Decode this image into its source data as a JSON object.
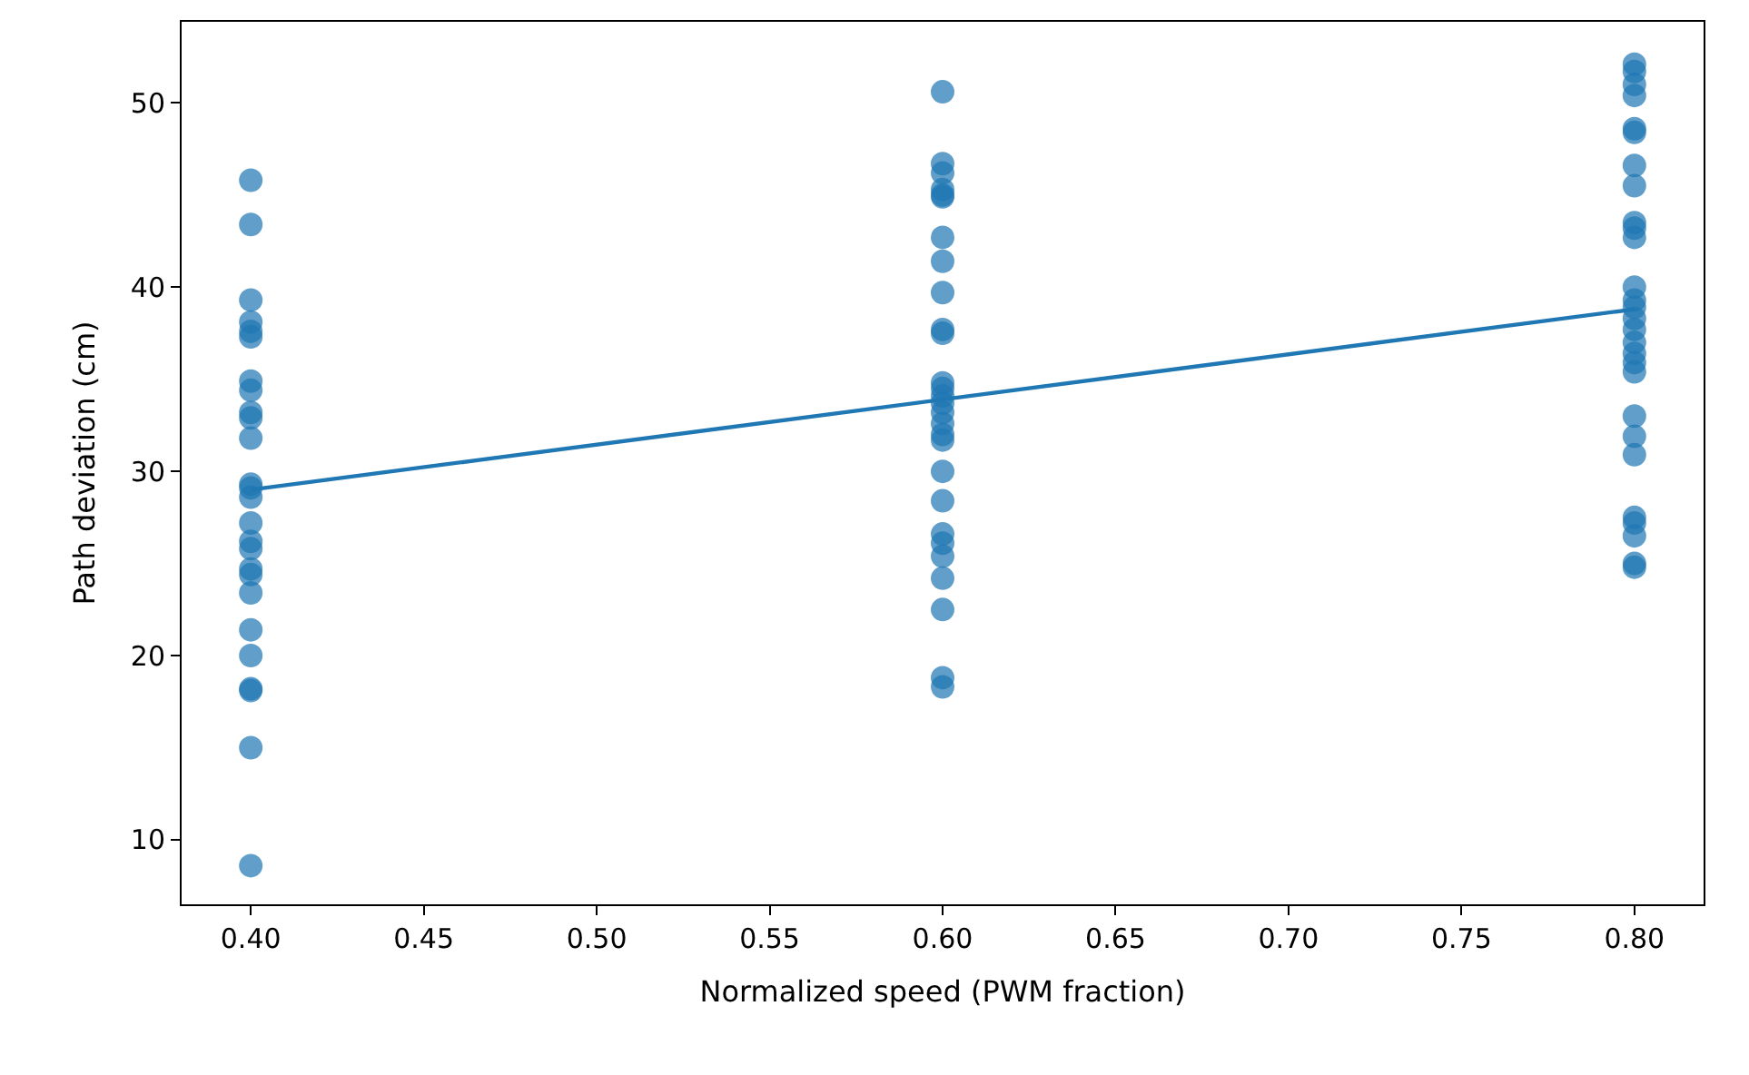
{
  "chart_data": {
    "type": "scatter",
    "xlabel": "Normalized speed (PWM fraction)",
    "ylabel": "Path deviation (cm)",
    "xlim": [
      0.38,
      0.82
    ],
    "xticks": [
      {
        "value": 0.4,
        "label": "0.40"
      },
      {
        "value": 0.45,
        "label": "0.45"
      },
      {
        "value": 0.5,
        "label": "0.50"
      },
      {
        "value": 0.55,
        "label": "0.55"
      },
      {
        "value": 0.6,
        "label": "0.60"
      },
      {
        "value": 0.65,
        "label": "0.65"
      },
      {
        "value": 0.7,
        "label": "0.70"
      },
      {
        "value": 0.75,
        "label": "0.75"
      },
      {
        "value": 0.8,
        "label": "0.80"
      }
    ],
    "ylim": [
      6.5,
      54.4
    ],
    "yticks": [
      10,
      20,
      30,
      40,
      50
    ],
    "grid": false,
    "legend": false,
    "marker": "circle",
    "series": [
      {
        "color": "#1f77b4",
        "x": [
          0.4,
          0.4,
          0.4,
          0.4,
          0.4,
          0.4,
          0.4,
          0.4,
          0.4,
          0.4,
          0.4,
          0.4,
          0.4,
          0.4,
          0.4,
          0.4,
          0.4,
          0.4,
          0.4,
          0.4,
          0.4,
          0.4,
          0.4,
          0.4,
          0.4,
          0.4,
          0.6,
          0.6,
          0.6,
          0.6,
          0.6,
          0.6,
          0.6,
          0.6,
          0.6,
          0.6,
          0.6,
          0.6,
          0.6,
          0.6,
          0.6,
          0.6,
          0.6,
          0.6,
          0.6,
          0.6,
          0.6,
          0.6,
          0.6,
          0.6,
          0.6,
          0.6,
          0.6,
          0.6,
          0.8,
          0.8,
          0.8,
          0.8,
          0.8,
          0.8,
          0.8,
          0.8,
          0.8,
          0.8,
          0.8,
          0.8,
          0.8,
          0.8,
          0.8,
          0.8,
          0.8,
          0.8,
          0.8,
          0.8,
          0.8,
          0.8,
          0.8,
          0.8,
          0.8,
          0.8,
          0.8,
          0.8
        ],
        "values": [
          45.8,
          43.4,
          39.3,
          38.1,
          37.6,
          37.3,
          34.9,
          34.4,
          33.2,
          32.9,
          31.8,
          29.3,
          29.1,
          28.6,
          27.2,
          26.2,
          25.8,
          24.7,
          24.4,
          23.4,
          21.4,
          20.0,
          18.2,
          18.1,
          15.0,
          8.6,
          50.6,
          46.7,
          46.2,
          45.3,
          45.0,
          44.9,
          42.7,
          41.4,
          39.7,
          37.7,
          37.5,
          34.8,
          34.5,
          34.1,
          33.7,
          33.2,
          32.6,
          32.0,
          31.7,
          30.0,
          28.4,
          26.6,
          26.1,
          25.4,
          24.2,
          22.5,
          18.8,
          18.3,
          52.1,
          51.7,
          51.0,
          50.4,
          48.6,
          48.4,
          46.6,
          45.5,
          43.5,
          43.2,
          42.7,
          40.0,
          39.3,
          38.9,
          38.3,
          37.7,
          37.0,
          36.4,
          35.9,
          35.4,
          33.0,
          31.9,
          30.9,
          27.5,
          27.2,
          26.5,
          25.0,
          24.8
        ]
      },
      {
        "type": "line",
        "color": "#1f77b4",
        "marker": "none",
        "line_style": "solid",
        "x": [
          0.4,
          0.8
        ],
        "values": [
          29.0,
          38.8
        ]
      }
    ]
  }
}
